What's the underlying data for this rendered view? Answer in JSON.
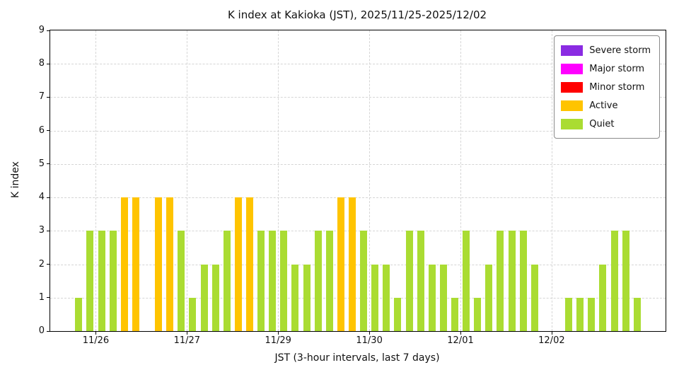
{
  "chart_data": {
    "type": "bar",
    "title": "K index at Kakioka (JST), 2025/11/25-2025/12/02",
    "xlabel": "JST (3-hour intervals, last 7 days)",
    "ylabel": "K index",
    "ylim": [
      0,
      9
    ],
    "yticks": [
      0,
      1,
      2,
      3,
      4,
      5,
      6,
      7,
      8,
      9
    ],
    "grid": "dashed",
    "legend_position": "upper right",
    "legend": [
      {
        "label": "Severe storm",
        "color": "#8a2be2",
        "min_k": 7
      },
      {
        "label": "Major storm",
        "color": "#ff00ff",
        "min_k": 6
      },
      {
        "label": "Minor storm",
        "color": "#ff0000",
        "min_k": 5
      },
      {
        "label": "Active",
        "color": "#ffc400",
        "min_k": 4
      },
      {
        "label": "Quiet",
        "color": "#aadc32",
        "min_k": 0
      }
    ],
    "x_unit_hours": 3,
    "days": [
      {
        "label": "11/25",
        "tick": false,
        "values": [
          0,
          0,
          1,
          3
        ]
      },
      {
        "label": "11/26",
        "tick": true,
        "values": [
          3,
          3,
          4,
          4,
          0,
          4,
          4,
          3
        ]
      },
      {
        "label": "11/27",
        "tick": true,
        "values": [
          1,
          2,
          2,
          3,
          4,
          4,
          3,
          3
        ]
      },
      {
        "label": "11/29",
        "tick": true,
        "values": [
          3,
          2,
          2,
          3,
          3,
          4,
          4,
          3
        ]
      },
      {
        "label": "11/30",
        "tick": true,
        "values": [
          2,
          2,
          1,
          3,
          3,
          2,
          2,
          1
        ]
      },
      {
        "label": "12/01",
        "tick": true,
        "values": [
          3,
          1,
          2,
          3,
          3,
          3,
          2,
          0
        ]
      },
      {
        "label": "12/02",
        "tick": true,
        "values": [
          0,
          1,
          1,
          1,
          2,
          3,
          3,
          1
        ]
      }
    ]
  }
}
